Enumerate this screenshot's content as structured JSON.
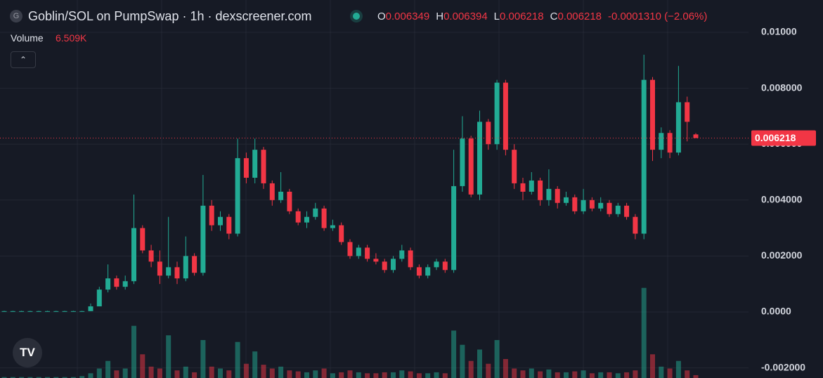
{
  "chart_data": {
    "type": "candlestick",
    "title": "Goblin/SOL on PumpSwap · 1h · dexscreener.com",
    "ohlc_keys": [
      "O",
      "H",
      "L",
      "C"
    ],
    "change": "-0.0001310 (−2.06%)",
    "volume_label": "Volume",
    "volume_value": "6.509K",
    "up_color": "#22ab94",
    "down_color": "#f23645",
    "grid": true,
    "ylim": [
      -0.002362,
      0.011156
    ],
    "yticks": [
      {
        "value": 0.01,
        "label": "0.01000"
      },
      {
        "value": 0.008,
        "label": "0.008000"
      },
      {
        "value": 0.006,
        "label": "0.006000"
      },
      {
        "value": 0.004,
        "label": "0.004000"
      },
      {
        "value": 0.002,
        "label": "0.002000"
      },
      {
        "value": 0,
        "label": "0.0000"
      },
      {
        "value": -0.002,
        "label": "-0.002000"
      }
    ],
    "open": [
      3e-05,
      3e-05,
      3e-05,
      3e-05,
      3e-05,
      3e-05,
      3e-05,
      3e-05,
      3e-05,
      3e-05,
      3e-05,
      0.0002,
      0.0008,
      0.0012,
      0.0009,
      0.0011,
      0.003,
      0.0022,
      0.0018,
      0.0013,
      0.0016,
      0.0012,
      0.002,
      0.0014,
      0.0038,
      0.0031,
      0.0034,
      0.0028,
      0.0055,
      0.0048,
      0.0058,
      0.0046,
      0.004,
      0.0043,
      0.0036,
      0.0032,
      0.0034,
      0.0037,
      0.003,
      0.0031,
      0.0025,
      0.002,
      0.0023,
      0.0019,
      0.0018,
      0.0015,
      0.0019,
      0.0022,
      0.0016,
      0.0013,
      0.0016,
      0.0018,
      0.0015,
      0.0045,
      0.0062,
      0.0042,
      0.0068,
      0.006,
      0.0082,
      0.0058,
      0.0046,
      0.0043,
      0.0047,
      0.004,
      0.0044,
      0.0039,
      0.0041,
      0.0036,
      0.004,
      0.0037,
      0.0039,
      0.0035,
      0.0038,
      0.0034,
      0.0028,
      0.0083,
      0.0058,
      0.0064,
      0.0057,
      0.0075,
      0.006349
    ],
    "high": [
      4e-05,
      4e-05,
      4e-05,
      4e-05,
      4e-05,
      4e-05,
      4e-05,
      4e-05,
      4e-05,
      4e-05,
      0.0003,
      0.0009,
      0.0017,
      0.0013,
      0.0013,
      0.0042,
      0.0031,
      0.0024,
      0.0022,
      0.0034,
      0.0018,
      0.0027,
      0.0021,
      0.0049,
      0.004,
      0.0036,
      0.0035,
      0.0062,
      0.0057,
      0.0062,
      0.0059,
      0.0047,
      0.005,
      0.0044,
      0.0037,
      0.0036,
      0.0039,
      0.0038,
      0.0033,
      0.0032,
      0.0026,
      0.0024,
      0.0024,
      0.0021,
      0.0019,
      0.002,
      0.0024,
      0.0023,
      0.0017,
      0.0017,
      0.0019,
      0.0019,
      0.0058,
      0.007,
      0.0063,
      0.0072,
      0.0069,
      0.0083,
      0.0083,
      0.006,
      0.0048,
      0.005,
      0.0048,
      0.0051,
      0.0045,
      0.0043,
      0.0042,
      0.0044,
      0.0041,
      0.0041,
      0.004,
      0.0039,
      0.0039,
      0.0035,
      0.0092,
      0.0084,
      0.0066,
      0.0065,
      0.0088,
      0.0077,
      0.006394
    ],
    "low": [
      2e-05,
      2e-05,
      2e-05,
      2e-05,
      2e-05,
      2e-05,
      2e-05,
      2e-05,
      2e-05,
      2e-05,
      3e-05,
      0.0002,
      0.0007,
      0.0008,
      0.0008,
      0.001,
      0.0021,
      0.0016,
      0.001,
      0.0012,
      0.001,
      0.0011,
      0.0013,
      0.0013,
      0.0029,
      0.0029,
      0.0026,
      0.0027,
      0.0046,
      0.0046,
      0.0044,
      0.0038,
      0.0039,
      0.0035,
      0.0031,
      0.003,
      0.0033,
      0.0029,
      0.0029,
      0.0024,
      0.0019,
      0.0019,
      0.0018,
      0.0017,
      0.0014,
      0.0014,
      0.0018,
      0.0015,
      0.0012,
      0.0012,
      0.0015,
      0.0014,
      0.0014,
      0.0043,
      0.0041,
      0.004,
      0.0058,
      0.0058,
      0.0056,
      0.0044,
      0.004,
      0.0042,
      0.0038,
      0.0038,
      0.0037,
      0.0038,
      0.0035,
      0.0035,
      0.0036,
      0.0036,
      0.0034,
      0.0034,
      0.0033,
      0.0026,
      0.0026,
      0.0054,
      0.0055,
      0.0055,
      0.0056,
      0.0061,
      0.006218
    ],
    "close": [
      3e-05,
      3e-05,
      3e-05,
      3e-05,
      3e-05,
      3e-05,
      3e-05,
      3e-05,
      3e-05,
      3e-05,
      0.0002,
      0.0008,
      0.0012,
      0.0009,
      0.0011,
      0.003,
      0.0022,
      0.0018,
      0.0013,
      0.0016,
      0.0012,
      0.002,
      0.0014,
      0.0038,
      0.0031,
      0.0034,
      0.0028,
      0.0055,
      0.0048,
      0.0058,
      0.0046,
      0.004,
      0.0043,
      0.0036,
      0.0032,
      0.0034,
      0.0037,
      0.003,
      0.0031,
      0.0025,
      0.002,
      0.0023,
      0.0019,
      0.0018,
      0.0015,
      0.0019,
      0.0022,
      0.0016,
      0.0013,
      0.0016,
      0.0018,
      0.0015,
      0.0045,
      0.0062,
      0.0042,
      0.0068,
      0.006,
      0.0082,
      0.0058,
      0.0046,
      0.0043,
      0.0047,
      0.004,
      0.0044,
      0.0039,
      0.0041,
      0.0036,
      0.004,
      0.0037,
      0.0039,
      0.0035,
      0.0038,
      0.0034,
      0.0028,
      0.0083,
      0.0058,
      0.0064,
      0.0057,
      0.0075,
      0.0068,
      0.006218
    ],
    "volume_lim": [
      0,
      100
    ],
    "volume": [
      1,
      1,
      1,
      1,
      1,
      1,
      1,
      1,
      1,
      2,
      5,
      10,
      18,
      8,
      10,
      55,
      25,
      12,
      10,
      45,
      8,
      12,
      6,
      40,
      12,
      10,
      8,
      38,
      15,
      28,
      14,
      10,
      12,
      8,
      7,
      6,
      8,
      10,
      5,
      6,
      8,
      6,
      5,
      5,
      6,
      6,
      8,
      7,
      5,
      5,
      6,
      5,
      50,
      35,
      18,
      30,
      15,
      40,
      20,
      10,
      8,
      10,
      7,
      9,
      6,
      6,
      7,
      8,
      5,
      6,
      6,
      5,
      6,
      8,
      95,
      25,
      12,
      10,
      18,
      8,
      3
    ]
  }
}
